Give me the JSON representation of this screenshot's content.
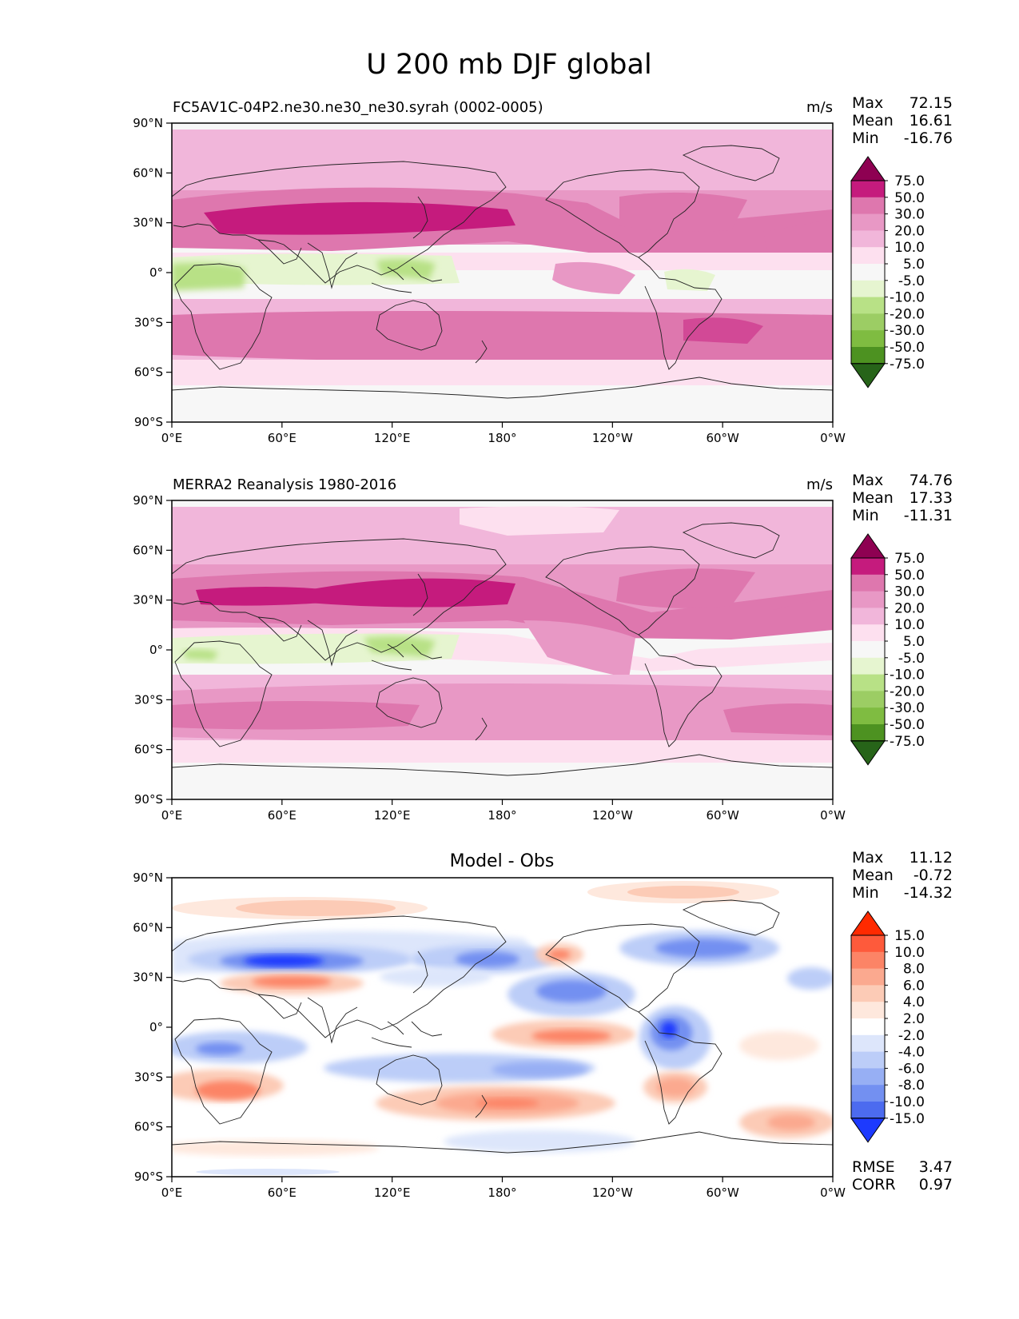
{
  "title": "U 200 mb DJF global",
  "axes": {
    "lat_ticks": [
      "90°N",
      "60°N",
      "30°N",
      "0°",
      "30°S",
      "60°S",
      "90°S"
    ],
    "lon_ticks": [
      "0°E",
      "60°E",
      "120°E",
      "180°",
      "120°W",
      "60°W",
      "0°W"
    ]
  },
  "panels": [
    {
      "id": "model",
      "left_title": "FC5AV1C-04P2.ne30.ne30_ne30.syrah (0002-0005)",
      "center_title": "",
      "units": "m/s",
      "stats": [
        {
          "label": "Max",
          "value": "72.15"
        },
        {
          "label": "Mean",
          "value": "16.61"
        },
        {
          "label": "Min",
          "value": "-16.76"
        }
      ],
      "colorbar_levels": [
        "75.0",
        "50.0",
        "30.0",
        "20.0",
        "10.0",
        "5.0",
        "-5.0",
        "-10.0",
        "-20.0",
        "-30.0",
        "-50.0",
        "-75.0"
      ],
      "colorbar_colors": [
        "#8e0152",
        "#c51b7d",
        "#de77ae",
        "#e898c5",
        "#f1b6da",
        "#fde0ef",
        "#f7f7f7",
        "#e6f5d0",
        "#b8e186",
        "#9ccd64",
        "#7fbc41",
        "#4d9221",
        "#276419"
      ],
      "extra_stats": []
    },
    {
      "id": "obs",
      "left_title": "MERRA2 Reanalysis 1980-2016",
      "center_title": "",
      "units": "m/s",
      "stats": [
        {
          "label": "Max",
          "value": "74.76"
        },
        {
          "label": "Mean",
          "value": "17.33"
        },
        {
          "label": "Min",
          "value": "-11.31"
        }
      ],
      "colorbar_levels": [
        "75.0",
        "50.0",
        "30.0",
        "20.0",
        "10.0",
        "5.0",
        "-5.0",
        "-10.0",
        "-20.0",
        "-30.0",
        "-50.0",
        "-75.0"
      ],
      "colorbar_colors": [
        "#8e0152",
        "#c51b7d",
        "#de77ae",
        "#e898c5",
        "#f1b6da",
        "#fde0ef",
        "#f7f7f7",
        "#e6f5d0",
        "#b8e186",
        "#9ccd64",
        "#7fbc41",
        "#4d9221",
        "#276419"
      ],
      "extra_stats": []
    },
    {
      "id": "diff",
      "left_title": "",
      "center_title": "Model - Obs",
      "units": "",
      "stats": [
        {
          "label": "Max",
          "value": "11.12"
        },
        {
          "label": "Mean",
          "value": "-0.72"
        },
        {
          "label": "Min",
          "value": "-14.32"
        }
      ],
      "colorbar_levels": [
        "15.0",
        "10.0",
        "8.0",
        "6.0",
        "4.0",
        "2.0",
        "-2.0",
        "-4.0",
        "-6.0",
        "-8.0",
        "-10.0",
        "-15.0"
      ],
      "colorbar_colors": [
        "#ff2a00",
        "#fe5a3b",
        "#fc8466",
        "#fba98f",
        "#fccbb6",
        "#fee8dd",
        "#ffffff",
        "#dde6fb",
        "#bccdf8",
        "#97aff4",
        "#7390f1",
        "#4c6bef",
        "#1d3afe"
      ],
      "extra_stats": [
        {
          "label": "RMSE",
          "value": "3.47"
        },
        {
          "label": "CORR",
          "value": "0.97"
        }
      ]
    }
  ]
}
